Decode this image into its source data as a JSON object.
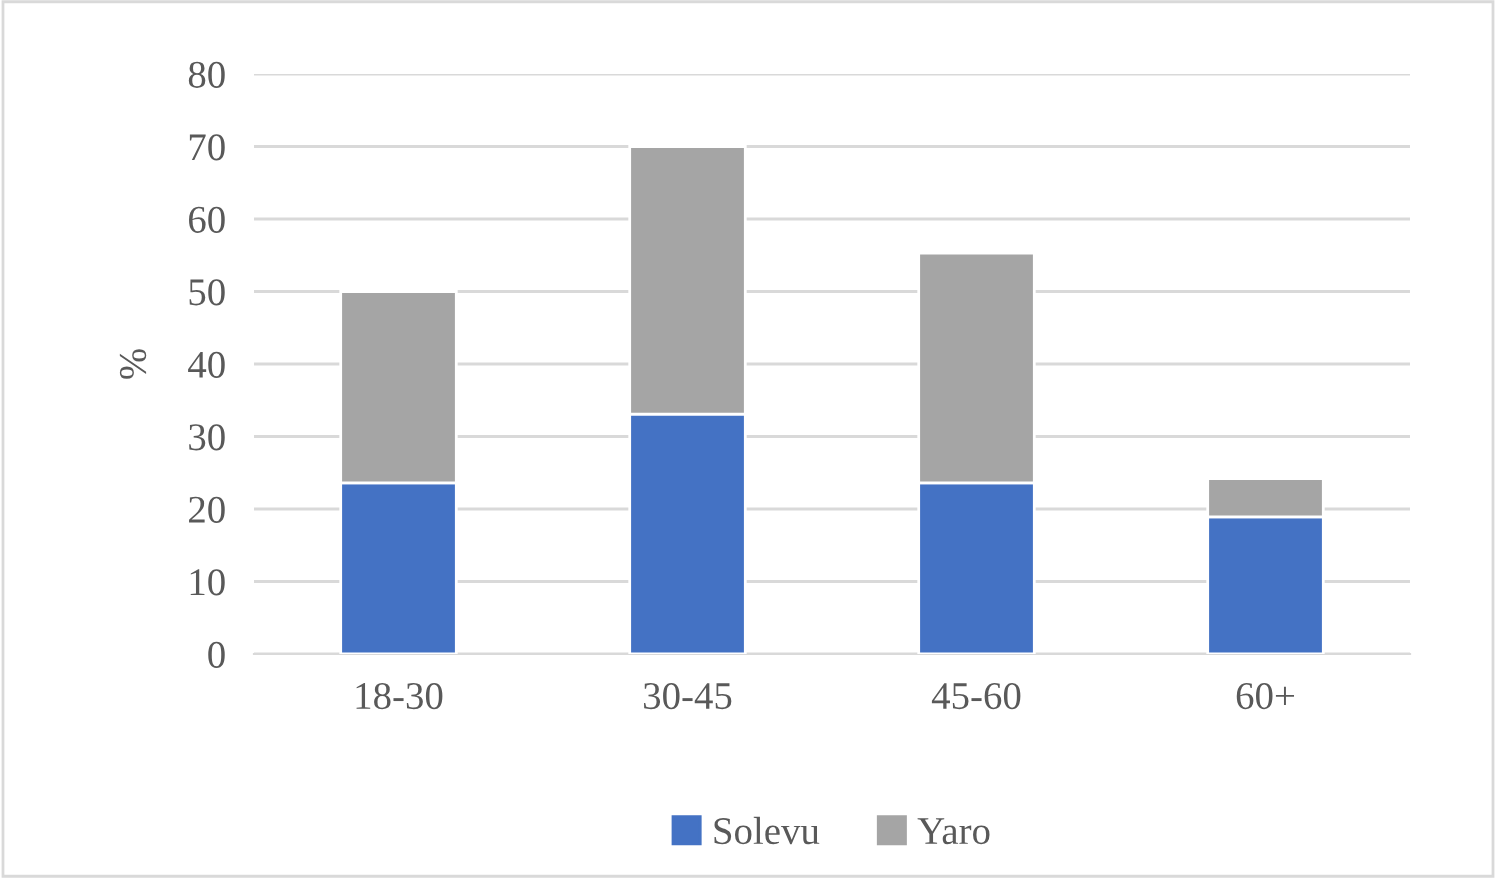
{
  "chart_data": {
    "type": "bar",
    "ylabel": "%",
    "categories": [
      "18-30",
      "30-45",
      "45-60",
      "60+"
    ],
    "series": [
      {
        "name": "Solevu",
        "color": "#4472c4",
        "values": [
          23.6,
          33.1,
          23.6,
          18.9
        ]
      },
      {
        "name": "Yaro",
        "color": "#a5a5a5",
        "values": [
          26.4,
          36.9,
          31.7,
          5.3
        ]
      }
    ],
    "stacked": true,
    "ylim": [
      0,
      80
    ],
    "yticks": [
      0,
      10,
      20,
      30,
      40,
      50,
      60,
      70,
      80
    ],
    "grid": "y",
    "legend": "bottom"
  }
}
